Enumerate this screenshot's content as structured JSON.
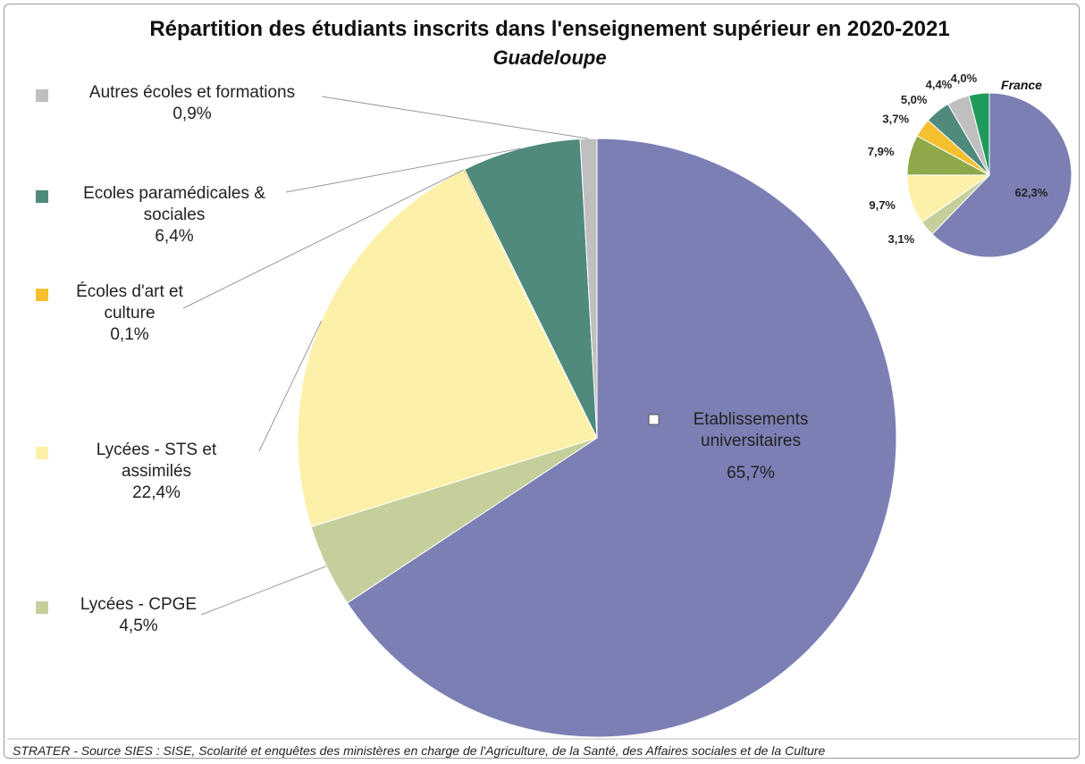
{
  "title": "Répartition des étudiants inscrits dans l'enseignement supérieur en 2020-2021",
  "source": "STRATER - Source SIES : SISE, Scolarité et enquêtes des ministères en charge de l'Agriculture, de la Santé, des Affaires sociales et de la Culture",
  "chart_data": [
    {
      "type": "pie",
      "subtitle": "Guadeloupe",
      "categories": [
        "Etablissements universitaires",
        "Lycées - CPGE",
        "Lycées - STS et assimilés",
        "Écoles d'art et culture",
        "Ecoles paramédicales & sociales",
        "Autres écoles et formations"
      ],
      "values": [
        65.7,
        4.5,
        22.4,
        0.1,
        6.4,
        0.9
      ],
      "value_labels": [
        "65,7%",
        "4,5%",
        "22,4%",
        "0,1%",
        "6,4%",
        "0,9%"
      ],
      "colors": [
        "#7b7fb4",
        "#c4cf9c",
        "#fdf0a8",
        "#f4c02e",
        "#4f8a7d",
        "#bfbfbf"
      ]
    },
    {
      "type": "pie",
      "title": "France",
      "values": [
        62.3,
        3.1,
        9.7,
        7.9,
        3.7,
        5.0,
        4.4,
        4.0
      ],
      "value_labels": [
        "62,3%",
        "3,1%",
        "9,7%",
        "7,9%",
        "3,7%",
        "5,0%",
        "4,4%",
        "4,0%"
      ],
      "colors": [
        "#7b7fb4",
        "#c4cf9c",
        "#fdf0a8",
        "#8fa84a",
        "#f4c02e",
        "#4f8a7d",
        "#bfbfbf",
        "#1e9a5a"
      ]
    }
  ]
}
